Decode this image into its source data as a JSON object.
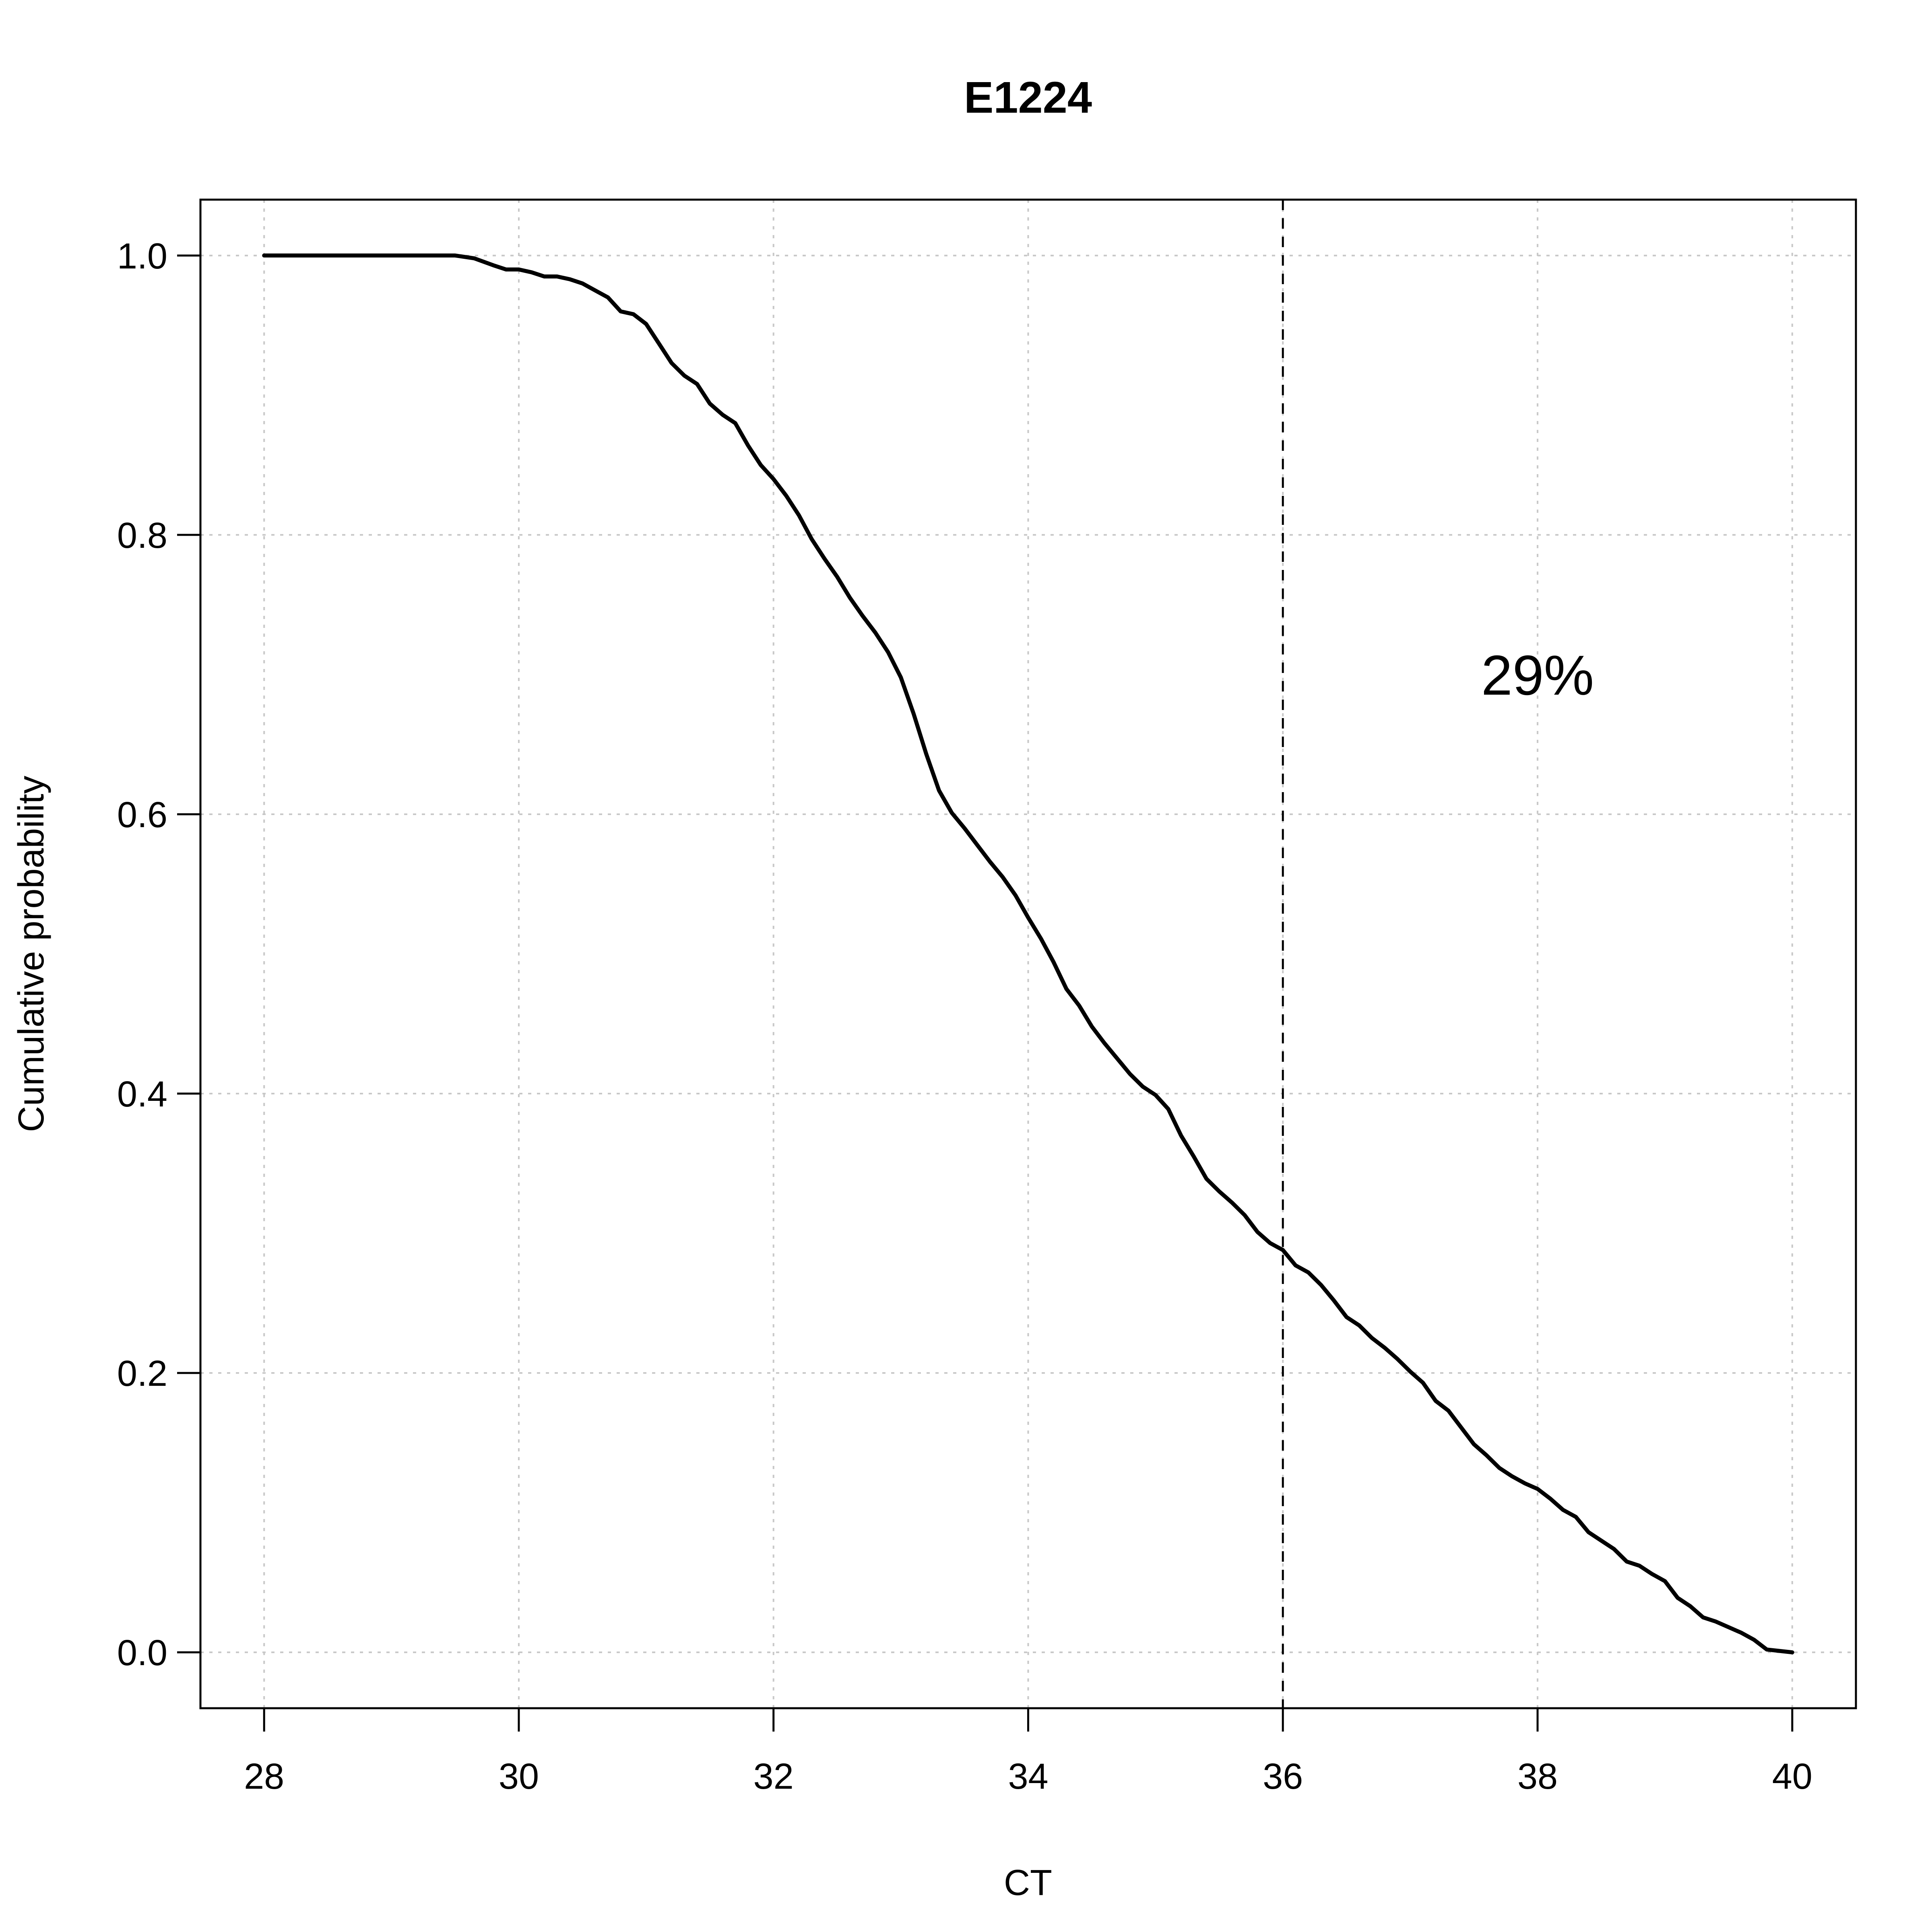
{
  "chart_data": {
    "type": "line",
    "title": "E1224",
    "xlabel": "CT",
    "ylabel": "Cumulative probability",
    "xlim": [
      27.5,
      40.5
    ],
    "ylim": [
      -0.04,
      1.04
    ],
    "xticks": [
      28,
      30,
      32,
      34,
      36,
      38,
      40
    ],
    "xtick_labels": [
      "28",
      "30",
      "32",
      "34",
      "36",
      "38",
      "40"
    ],
    "yticks": [
      0.0,
      0.2,
      0.4,
      0.6,
      0.8,
      1.0
    ],
    "ytick_labels": [
      "0.0",
      "0.2",
      "0.4",
      "0.6",
      "0.8",
      "1.0"
    ],
    "grid": true,
    "reference_line": {
      "x": 36,
      "style": "dashed"
    },
    "annotation": {
      "text": "29%",
      "x": 38,
      "y": 0.7
    },
    "colors": {
      "line": "#000000",
      "grid": "#c8c8c8"
    },
    "series": [
      {
        "x": [
          28.0,
          28.5,
          29.0,
          29.5,
          29.65,
          29.8,
          29.9,
          30.0,
          30.1,
          30.2,
          30.3,
          30.4,
          30.5,
          30.6,
          30.7,
          30.8,
          30.9,
          31.0,
          31.1,
          31.2,
          31.3,
          31.4,
          31.5,
          31.6,
          31.7,
          31.8,
          31.9,
          32.0,
          32.1,
          32.2,
          32.3,
          32.4,
          32.5,
          32.6,
          32.7,
          32.8,
          32.9,
          33.0,
          33.1,
          33.2,
          33.3,
          33.4,
          33.5,
          33.6,
          33.7,
          33.8,
          33.9,
          34.0,
          34.1,
          34.2,
          34.3,
          34.4,
          34.5,
          34.6,
          34.7,
          34.8,
          34.9,
          35.0,
          35.1,
          35.2,
          35.3,
          35.4,
          35.5,
          35.6,
          35.7,
          35.8,
          35.9,
          36.0,
          36.1,
          36.2,
          36.3,
          36.4,
          36.5,
          36.6,
          36.7,
          36.8,
          36.9,
          37.0,
          37.1,
          37.2,
          37.3,
          37.4,
          37.5,
          37.6,
          37.7,
          37.8,
          37.9,
          38.0,
          38.1,
          38.2,
          38.3,
          38.4,
          38.5,
          38.6,
          38.7,
          38.8,
          38.9,
          39.0,
          39.1,
          39.2,
          39.3,
          39.4,
          39.5,
          39.6,
          39.7,
          39.8,
          40.0
        ],
        "values": [
          1.0,
          1.0,
          1.0,
          1.0,
          0.998,
          0.993,
          0.99,
          0.99,
          0.988,
          0.985,
          0.985,
          0.983,
          0.98,
          0.975,
          0.97,
          0.96,
          0.958,
          0.951,
          0.937,
          0.923,
          0.914,
          0.908,
          0.894,
          0.886,
          0.88,
          0.864,
          0.85,
          0.84,
          0.828,
          0.814,
          0.797,
          0.783,
          0.77,
          0.755,
          0.742,
          0.73,
          0.716,
          0.698,
          0.672,
          0.643,
          0.617,
          0.601,
          0.59,
          0.578,
          0.566,
          0.555,
          0.542,
          0.526,
          0.511,
          0.494,
          0.475,
          0.463,
          0.448,
          0.436,
          0.425,
          0.414,
          0.405,
          0.399,
          0.389,
          0.37,
          0.355,
          0.339,
          0.33,
          0.322,
          0.313,
          0.301,
          0.293,
          0.288,
          0.277,
          0.272,
          0.263,
          0.252,
          0.24,
          0.234,
          0.225,
          0.218,
          0.21,
          0.201,
          0.193,
          0.18,
          0.173,
          0.161,
          0.149,
          0.141,
          0.132,
          0.126,
          0.121,
          0.117,
          0.11,
          0.102,
          0.097,
          0.086,
          0.08,
          0.074,
          0.065,
          0.062,
          0.056,
          0.051,
          0.039,
          0.033,
          0.025,
          0.022,
          0.018,
          0.014,
          0.009,
          0.002,
          0.0
        ]
      }
    ]
  }
}
